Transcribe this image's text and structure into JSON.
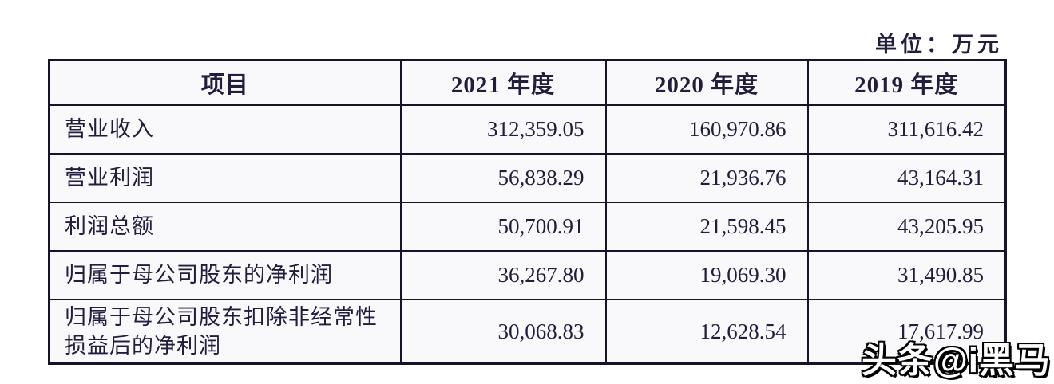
{
  "unit_label": "单位：万元",
  "watermark": "头条@i黑马",
  "colors": {
    "text": "#221d3c",
    "border": "#16132b",
    "table_background": "#f9f9fc",
    "page_background": "#ffffff",
    "watermark_fill": "#ffffff",
    "watermark_outline": "#000000"
  },
  "table": {
    "columns": [
      "项目",
      "2021 年度",
      "2020 年度",
      "2019 年度"
    ],
    "rows": [
      {
        "label": "营业收入",
        "values": [
          "312,359.05",
          "160,970.86",
          "311,616.42"
        ]
      },
      {
        "label": "营业利润",
        "values": [
          "56,838.29",
          "21,936.76",
          "43,164.31"
        ]
      },
      {
        "label": "利润总额",
        "values": [
          "50,700.91",
          "21,598.45",
          "43,205.95"
        ]
      },
      {
        "label": "归属于母公司股东的净利润",
        "values": [
          "36,267.80",
          "19,069.30",
          "31,490.85"
        ]
      },
      {
        "label": "归属于母公司股东扣除非经常性损益后的净利润",
        "values": [
          "30,068.83",
          "12,628.54",
          "17,617.99"
        ]
      }
    ]
  }
}
